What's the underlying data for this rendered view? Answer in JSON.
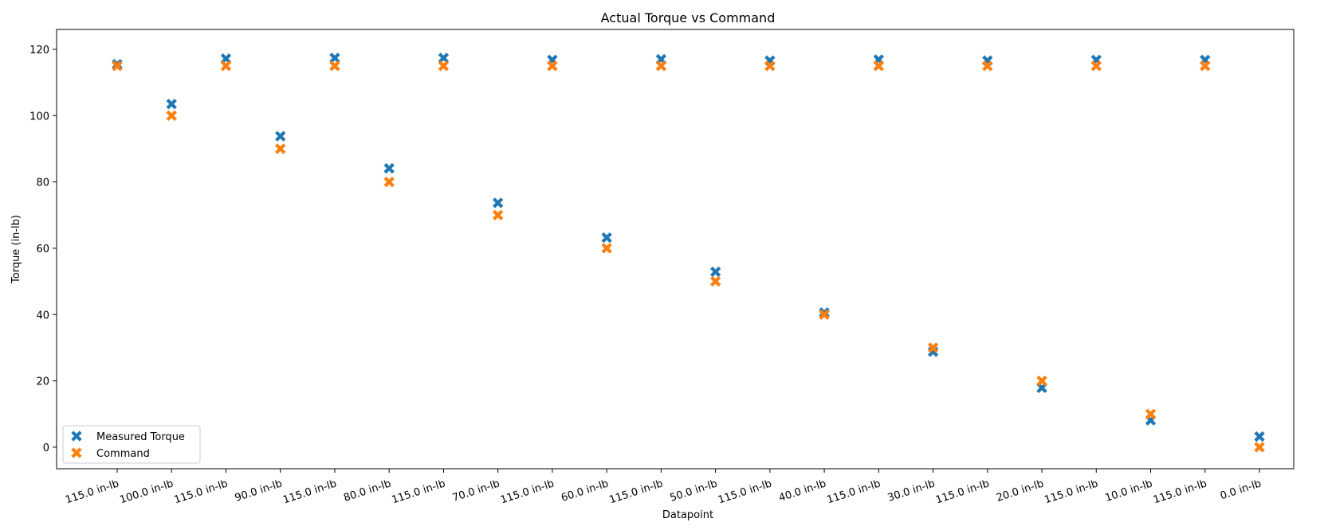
{
  "chart_data": {
    "type": "scatter",
    "title": "Actual Torque vs Command",
    "xlabel": "Datapoint",
    "ylabel": "Torque (in-lb)",
    "ylim": [
      -6.5,
      126
    ],
    "yticks": [
      0,
      20,
      40,
      60,
      80,
      100,
      120
    ],
    "categories": [
      "115.0 in-lb",
      "100.0 in-lb",
      "115.0 in-lb",
      "90.0 in-lb",
      "115.0 in-lb",
      "80.0 in-lb",
      "115.0 in-lb",
      "70.0 in-lb",
      "115.0 in-lb",
      "60.0 in-lb",
      "115.0 in-lb",
      "50.0 in-lb",
      "115.0 in-lb",
      "40.0 in-lb",
      "115.0 in-lb",
      "30.0 in-lb",
      "115.0 in-lb",
      "20.0 in-lb",
      "115.0 in-lb",
      "10.0 in-lb",
      "115.0 in-lb",
      "0.0 in-lb"
    ],
    "series": [
      {
        "name": "Measured Torque",
        "color": "#1f77b4",
        "marker": "x-filled",
        "values": [
          115.5,
          103.5,
          117.2,
          93.8,
          117.4,
          84.1,
          117.4,
          73.7,
          116.8,
          63.2,
          117.0,
          52.9,
          116.6,
          40.6,
          116.9,
          28.8,
          116.6,
          17.9,
          116.8,
          8.1,
          116.8,
          3.2
        ]
      },
      {
        "name": "Command",
        "color": "#ff7f0e",
        "marker": "x-filled",
        "values": [
          115,
          100,
          115,
          90,
          115,
          80,
          115,
          70,
          115,
          60,
          115,
          50,
          115,
          40,
          115,
          30,
          115,
          20,
          115,
          10,
          115,
          0
        ]
      }
    ],
    "grid": false,
    "legend_position": "lower-left"
  }
}
